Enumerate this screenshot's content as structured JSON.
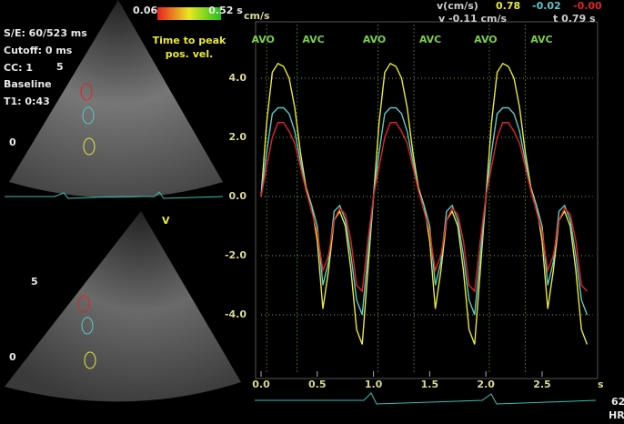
{
  "chart_data": {
    "type": "line",
    "y_label": "cm/s",
    "x_label": "s",
    "x": [
      0.0,
      0.05,
      0.1,
      0.15,
      0.2,
      0.25,
      0.3,
      0.35,
      0.4,
      0.45,
      0.5,
      0.55,
      0.6,
      0.65,
      0.7,
      0.75,
      0.8,
      0.85,
      0.9,
      0.95,
      1.0,
      1.05,
      1.1,
      1.15,
      1.2,
      1.25,
      1.3,
      1.35,
      1.4,
      1.45,
      1.5,
      1.55,
      1.6,
      1.65,
      1.7,
      1.75,
      1.8,
      1.85,
      1.9,
      1.95,
      2.0,
      2.05,
      2.1,
      2.15,
      2.2,
      2.25,
      2.3,
      2.35,
      2.4,
      2.45,
      2.5,
      2.55,
      2.6,
      2.65,
      2.7,
      2.75,
      2.8,
      2.85,
      2.9
    ],
    "series": [
      {
        "color": "#e8e83a",
        "values": [
          0.0,
          2.5,
          4.2,
          4.5,
          4.4,
          4.0,
          3.0,
          1.5,
          0.3,
          -0.3,
          -1.5,
          -3.8,
          -2.5,
          -0.8,
          -0.5,
          -1.0,
          -2.5,
          -4.5,
          -5.0,
          -2.5,
          0.0,
          2.5,
          4.2,
          4.5,
          4.4,
          4.0,
          3.0,
          1.5,
          0.3,
          -0.3,
          -1.5,
          -3.8,
          -2.5,
          -0.8,
          -0.5,
          -1.0,
          -2.5,
          -4.5,
          -5.0,
          -2.5,
          0.0,
          2.5,
          4.2,
          4.5,
          4.4,
          4.0,
          3.0,
          1.5,
          0.3,
          -0.3,
          -1.5,
          -3.8,
          -2.5,
          -0.8,
          -0.5,
          -1.0,
          -2.5,
          -4.5,
          -5.0
        ]
      },
      {
        "color": "#5cc8c8",
        "values": [
          0.0,
          1.5,
          2.8,
          3.0,
          3.0,
          2.8,
          2.2,
          1.2,
          0.2,
          -0.3,
          -1.0,
          -3.0,
          -2.2,
          -0.5,
          -0.3,
          -0.8,
          -2.0,
          -3.5,
          -4.0,
          -2.0,
          0.0,
          1.5,
          2.8,
          3.0,
          3.0,
          2.8,
          2.2,
          1.2,
          0.2,
          -0.3,
          -1.0,
          -3.0,
          -2.2,
          -0.5,
          -0.3,
          -0.8,
          -2.0,
          -3.5,
          -4.0,
          -2.0,
          0.0,
          1.5,
          2.8,
          3.0,
          3.0,
          2.8,
          2.2,
          1.2,
          0.2,
          -0.3,
          -1.0,
          -3.0,
          -2.2,
          -0.5,
          -0.3,
          -0.8,
          -2.0,
          -3.5,
          -4.0
        ]
      },
      {
        "color": "#e02424",
        "values": [
          0.0,
          1.0,
          2.0,
          2.5,
          2.5,
          2.2,
          1.8,
          1.0,
          0.2,
          -0.5,
          -1.2,
          -2.5,
          -2.0,
          -0.8,
          -0.4,
          -0.6,
          -1.5,
          -3.0,
          -3.2,
          -1.5,
          0.0,
          1.0,
          2.0,
          2.5,
          2.5,
          2.2,
          1.8,
          1.0,
          0.2,
          -0.5,
          -1.2,
          -2.5,
          -2.0,
          -0.8,
          -0.4,
          -0.6,
          -1.5,
          -3.0,
          -3.2,
          -1.5,
          0.0,
          1.0,
          2.0,
          2.5,
          2.5,
          2.2,
          1.8,
          1.0,
          0.2,
          -0.5,
          -1.2,
          -2.5,
          -2.0,
          -0.8,
          -0.4,
          -0.6,
          -1.5,
          -3.0,
          -3.2
        ]
      }
    ],
    "xlim": [
      0,
      2.95
    ],
    "ylim": [
      -6,
      5.8
    ],
    "xticks": [
      {
        "value": 0,
        "label": "0.0"
      },
      0.5,
      {
        "value": 1,
        "label": "1.0"
      },
      1.5,
      {
        "value": 2,
        "label": "2.0"
      },
      2.5
    ],
    "yticks": [
      {
        "value": 4,
        "label": "4.0"
      },
      {
        "value": 2,
        "label": "2.0"
      },
      {
        "value": 0,
        "label": "0.0"
      },
      {
        "value": -2,
        "label": "-2.0"
      },
      {
        "value": -4,
        "label": "-4.0"
      }
    ],
    "grid": true,
    "events": [
      {
        "label": "AVO",
        "x": 0.05
      },
      {
        "label": "AVC",
        "x": 0.32
      },
      {
        "label": "AVO",
        "x": 1.04
      },
      {
        "label": "AVC",
        "x": 1.36
      },
      {
        "label": "AVO",
        "x": 2.03
      },
      {
        "label": "AVC",
        "x": 2.35
      }
    ]
  },
  "header": {
    "v_unit": "v(cm/s)",
    "v1": "0.78",
    "v2": "-0.02",
    "v3": "-0.00",
    "cursor_v": "v -0.11 cm/s",
    "cursor_t": "t 0.79 s"
  },
  "echo_panel": {
    "se": "S/E: 60/523 ms",
    "cutoff": "Cutoff: 0 ms",
    "cc": "CC: 1",
    "baseline": "Baseline",
    "t1": "T1: 0:43",
    "scale_min": "0.06",
    "scale_max": "0.52 s",
    "scale_title1": "Time to peak",
    "scale_title2": "pos. vel.",
    "depth_a": "5",
    "depth_b": "0",
    "depth_c": "5",
    "depth_d": "0",
    "marker": "V"
  },
  "ecg": {
    "hr": "62",
    "hr_label": "HR"
  }
}
